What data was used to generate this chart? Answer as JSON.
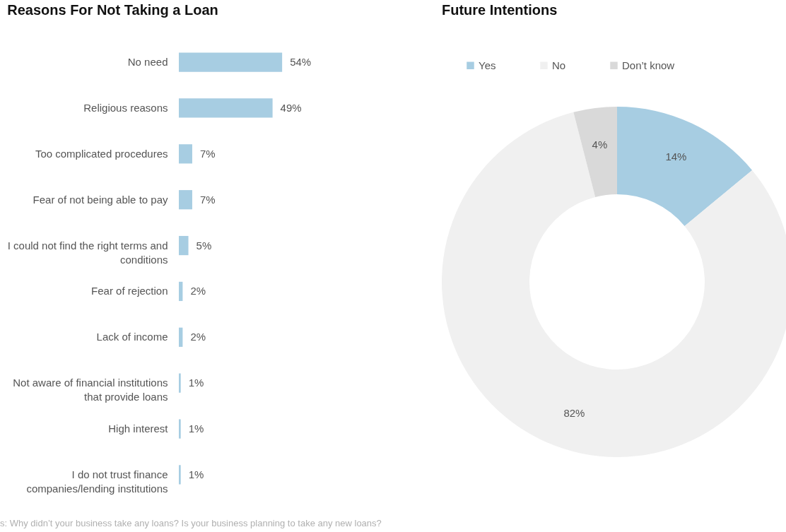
{
  "chart_data": [
    {
      "type": "bar",
      "orientation": "horizontal",
      "title": "Reasons For Not Taking a Loan",
      "categories": [
        "No need",
        "Religious reasons",
        "Too complicated procedures",
        "Fear of not being able to pay",
        "I could not find the right terms and conditions",
        "Fear of rejection",
        "Lack of income",
        "Not aware of financial institutions that provide loans",
        "High interest",
        "I do not trust finance companies/lending institutions"
      ],
      "values": [
        54,
        49,
        7,
        7,
        5,
        2,
        2,
        1,
        1,
        1
      ],
      "value_labels": [
        "54%",
        "49%",
        "7%",
        "7%",
        "5%",
        "2%",
        "2%",
        "1%",
        "1%",
        "1%"
      ],
      "color": "#a7cde2",
      "tick_labels": "y",
      "annotations": [
        "s: Why didn’t your business take any loans? Is your business planning to take any new loans?"
      ]
    },
    {
      "type": "donut",
      "title": "Future Intentions",
      "categories": [
        "Yes",
        "No",
        "Don’t know"
      ],
      "values": [
        14,
        82,
        4
      ],
      "value_labels": [
        "14%",
        "82%",
        "4%"
      ],
      "colors": [
        "#a7cde2",
        "#f0f0f0",
        "#d9d9d9"
      ],
      "legend": "top"
    }
  ]
}
